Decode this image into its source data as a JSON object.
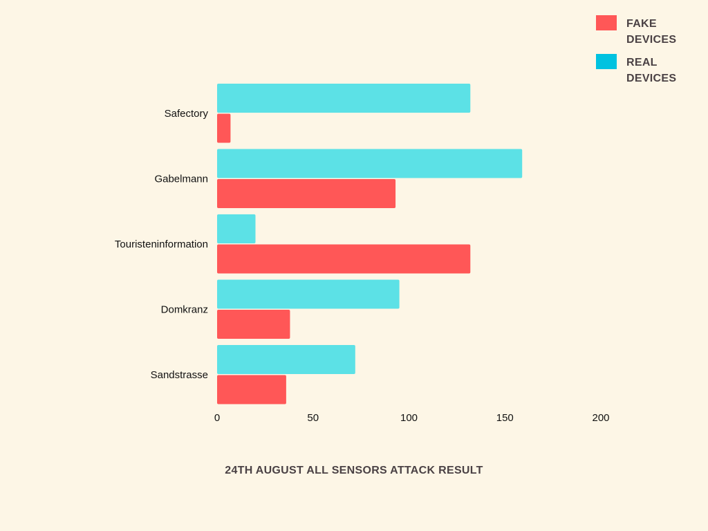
{
  "chart_data": {
    "type": "bar",
    "orientation": "horizontal",
    "title": "24TH AUGUST ALL SENSORS ATTACK RESULT",
    "categories": [
      "Safectory",
      "Gabelmann",
      "Touristeninformation",
      "Domkranz",
      "Sandstrasse"
    ],
    "series": [
      {
        "name": "REAL DEVICES",
        "color": "#5ce1e6",
        "values": [
          132,
          159,
          20,
          95,
          72
        ]
      },
      {
        "name": "FAKE DEVICES",
        "color": "#ff5757",
        "values": [
          7,
          93,
          132,
          38,
          36
        ]
      }
    ],
    "xlim": [
      0,
      200
    ],
    "xticks": [
      0,
      50,
      100,
      150,
      200
    ],
    "grid": false,
    "legend_position": "top-right"
  },
  "legend": {
    "items": [
      {
        "label": "FAKE DEVICES",
        "color": "#ff5757"
      },
      {
        "label": "REAL DEVICES",
        "color": "#00c2e0"
      }
    ]
  }
}
